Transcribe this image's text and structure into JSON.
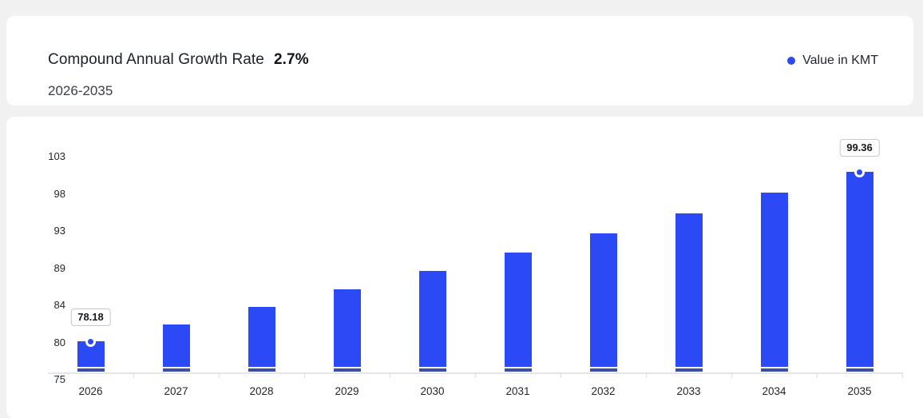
{
  "header": {
    "title": "Compound Annual Growth Rate",
    "cagr": "2.7%",
    "subtitle": "2026-2035",
    "legend_label": "Value in KMT"
  },
  "colors": {
    "bar": "#2b49f4",
    "bar_base_stripe": "#3e4da5",
    "legend_dot": "#2b49f4",
    "page_background": "#f1f1f2",
    "card_background": "#ffffff",
    "axis_line": "#e5e6e9"
  },
  "chart_data": {
    "type": "bar",
    "title": "Compound Annual Growth Rate 2.7%",
    "subtitle": "2026-2035",
    "unit": "KMT",
    "legend": [
      "Value in KMT"
    ],
    "legend_position": "top-right",
    "grid": false,
    "categories": [
      "2026",
      "2027",
      "2028",
      "2029",
      "2030",
      "2031",
      "2032",
      "2033",
      "2034",
      "2035"
    ],
    "values": [
      78.18,
      80.29,
      82.46,
      84.69,
      86.97,
      89.32,
      91.73,
      94.21,
      96.76,
      99.36
    ],
    "labeled_points": [
      {
        "category": "2026",
        "value_label": "78.18"
      },
      {
        "category": "2035",
        "value_label": "99.36"
      }
    ],
    "y_ticks": [
      "103",
      "98",
      "93",
      "89",
      "84",
      "80",
      "75"
    ],
    "ylim": [
      75,
      103
    ],
    "xlabel": "",
    "ylabel": ""
  }
}
